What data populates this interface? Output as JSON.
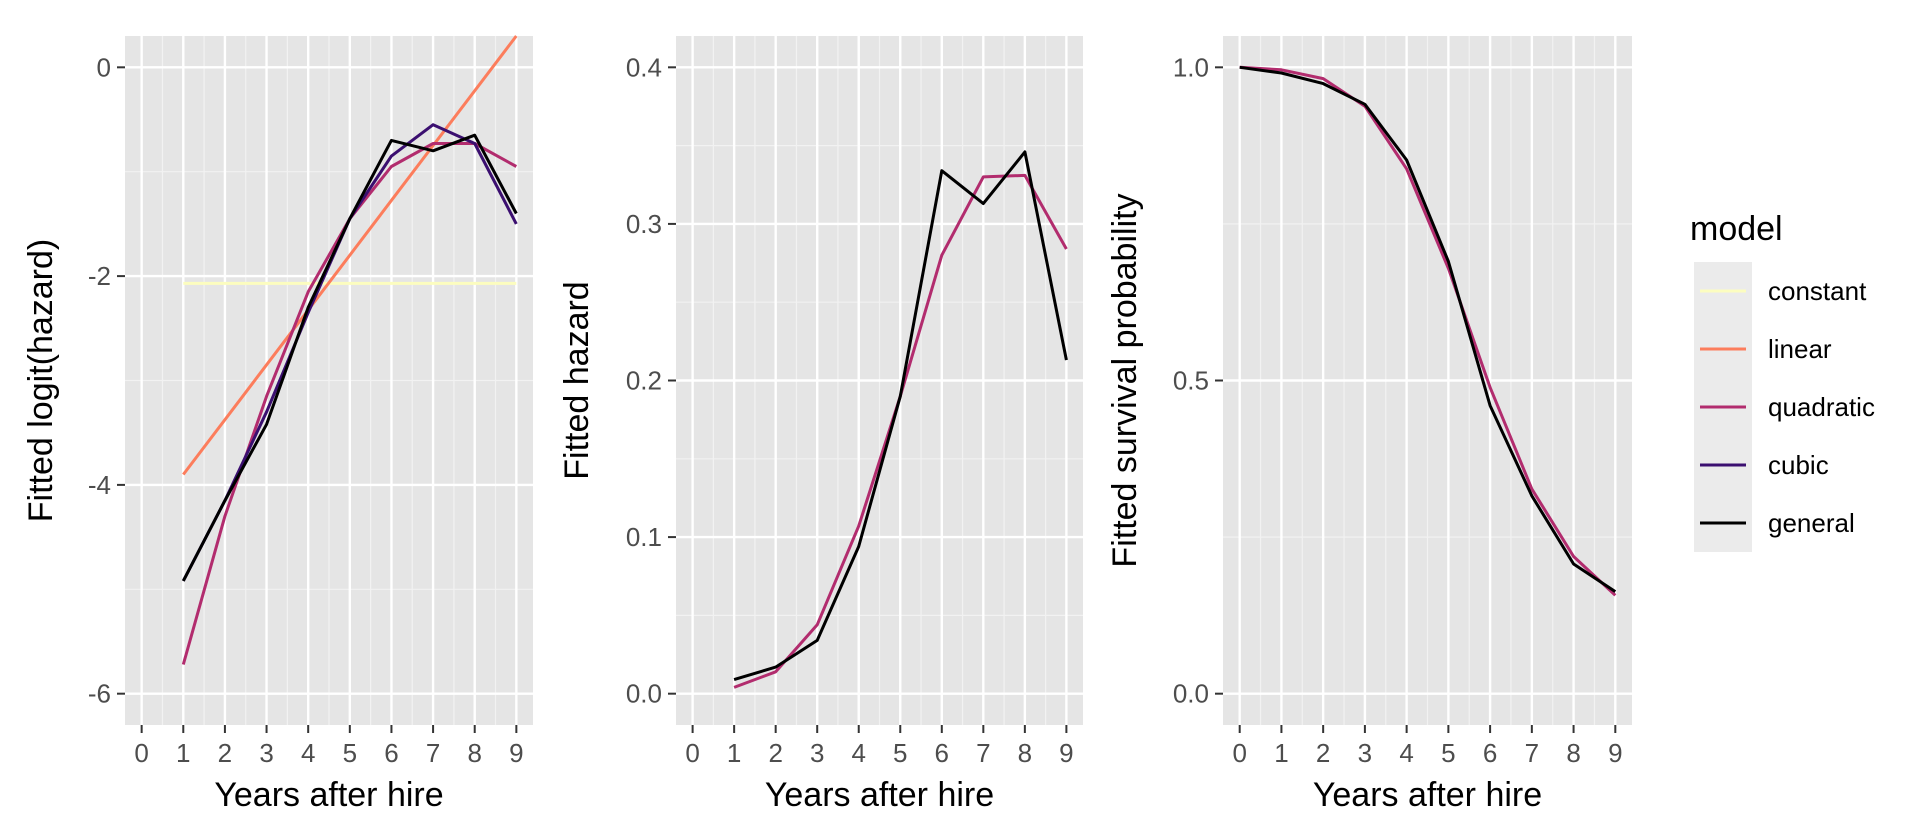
{
  "chart_data": [
    {
      "type": "line",
      "xlabel": "Years after hire",
      "ylabel": "Fitted logit(hazard)",
      "xlim": [
        -0.4,
        9.4
      ],
      "ylim": [
        -6.3,
        0.3
      ],
      "x_ticks": [
        0,
        1,
        2,
        3,
        4,
        5,
        6,
        7,
        8,
        9
      ],
      "y_ticks": [
        0,
        -2,
        -4,
        -6
      ],
      "y_tick_labels": [
        "0",
        "-2",
        "-4",
        "-6"
      ],
      "grid": true,
      "series": [
        {
          "name": "constant",
          "color": "#FCFDBF",
          "x": [
            1,
            9
          ],
          "values": [
            -2.07,
            -2.07
          ]
        },
        {
          "name": "linear",
          "color": "#FC7D5C",
          "x": [
            1,
            9
          ],
          "values": [
            -3.9,
            0.3
          ]
        },
        {
          "name": "quadratic",
          "color": "#B22C6E",
          "x": [
            1,
            2,
            3,
            4,
            5,
            6,
            7,
            8,
            9
          ],
          "values": [
            -5.72,
            -4.3,
            -3.15,
            -2.15,
            -1.45,
            -0.95,
            -0.73,
            -0.73,
            -0.95
          ]
        },
        {
          "name": "cubic",
          "color": "#3B0F70",
          "x": [
            1,
            2,
            3,
            4,
            5,
            6,
            7,
            8,
            9
          ],
          "values": [
            -4.92,
            -4.15,
            -3.3,
            -2.35,
            -1.45,
            -0.85,
            -0.55,
            -0.73,
            -1.5
          ]
        },
        {
          "name": "general",
          "color": "#000000",
          "x": [
            1,
            2,
            3,
            4,
            5,
            6,
            7,
            8,
            9
          ],
          "values": [
            -4.92,
            -4.15,
            -3.42,
            -2.3,
            -1.45,
            -0.7,
            -0.8,
            -0.65,
            -1.4
          ]
        }
      ]
    },
    {
      "type": "line",
      "xlabel": "Years after hire",
      "ylabel": "Fitted hazard",
      "xlim": [
        -0.4,
        9.4
      ],
      "ylim": [
        -0.02,
        0.42
      ],
      "x_ticks": [
        0,
        1,
        2,
        3,
        4,
        5,
        6,
        7,
        8,
        9
      ],
      "y_ticks": [
        0.0,
        0.1,
        0.2,
        0.3,
        0.4
      ],
      "y_tick_labels": [
        "0.0",
        "0.1",
        "0.2",
        "0.3",
        "0.4"
      ],
      "grid": true,
      "series": [
        {
          "name": "quadratic",
          "color": "#B22C6E",
          "x": [
            1,
            2,
            3,
            4,
            5,
            6,
            7,
            8,
            9
          ],
          "values": [
            0.004,
            0.014,
            0.044,
            0.107,
            0.19,
            0.28,
            0.33,
            0.331,
            0.284
          ]
        },
        {
          "name": "general",
          "color": "#000000",
          "x": [
            1,
            2,
            3,
            4,
            5,
            6,
            7,
            8,
            9
          ],
          "values": [
            0.009,
            0.017,
            0.034,
            0.094,
            0.19,
            0.334,
            0.313,
            0.346,
            0.213
          ]
        }
      ]
    },
    {
      "type": "line",
      "xlabel": "Years after hire",
      "ylabel": "Fitted survival probability",
      "xlim": [
        -0.4,
        9.4
      ],
      "ylim": [
        -0.05,
        1.05
      ],
      "x_ticks": [
        0,
        1,
        2,
        3,
        4,
        5,
        6,
        7,
        8,
        9
      ],
      "y_ticks": [
        0.0,
        0.5,
        1.0
      ],
      "y_tick_labels": [
        "0.0",
        "0.5",
        "1.0"
      ],
      "grid": true,
      "series": [
        {
          "name": "quadratic",
          "color": "#B22C6E",
          "x": [
            0,
            1,
            2,
            3,
            4,
            5,
            6,
            7,
            8,
            9
          ],
          "values": [
            1.0,
            0.996,
            0.982,
            0.938,
            0.838,
            0.679,
            0.489,
            0.327,
            0.219,
            0.157
          ]
        },
        {
          "name": "general",
          "color": "#000000",
          "x": [
            0,
            1,
            2,
            3,
            4,
            5,
            6,
            7,
            8,
            9
          ],
          "values": [
            1.0,
            0.991,
            0.974,
            0.941,
            0.852,
            0.69,
            0.46,
            0.316,
            0.207,
            0.163
          ]
        }
      ]
    }
  ],
  "legend": {
    "title": "model",
    "position": "right",
    "entries": [
      {
        "label": "constant",
        "color": "#FCFDBF"
      },
      {
        "label": "linear",
        "color": "#FC7D5C"
      },
      {
        "label": "quadratic",
        "color": "#B22C6E"
      },
      {
        "label": "cubic",
        "color": "#3B0F70"
      },
      {
        "label": "general",
        "color": "#000000"
      }
    ]
  },
  "colors": {
    "panel_background": "#E5E5E5",
    "major_grid": "#FFFFFF",
    "minor_grid": "#F2F2F2",
    "tick_text": "#4D4D4D",
    "legend_background": "#EBEBEB"
  }
}
